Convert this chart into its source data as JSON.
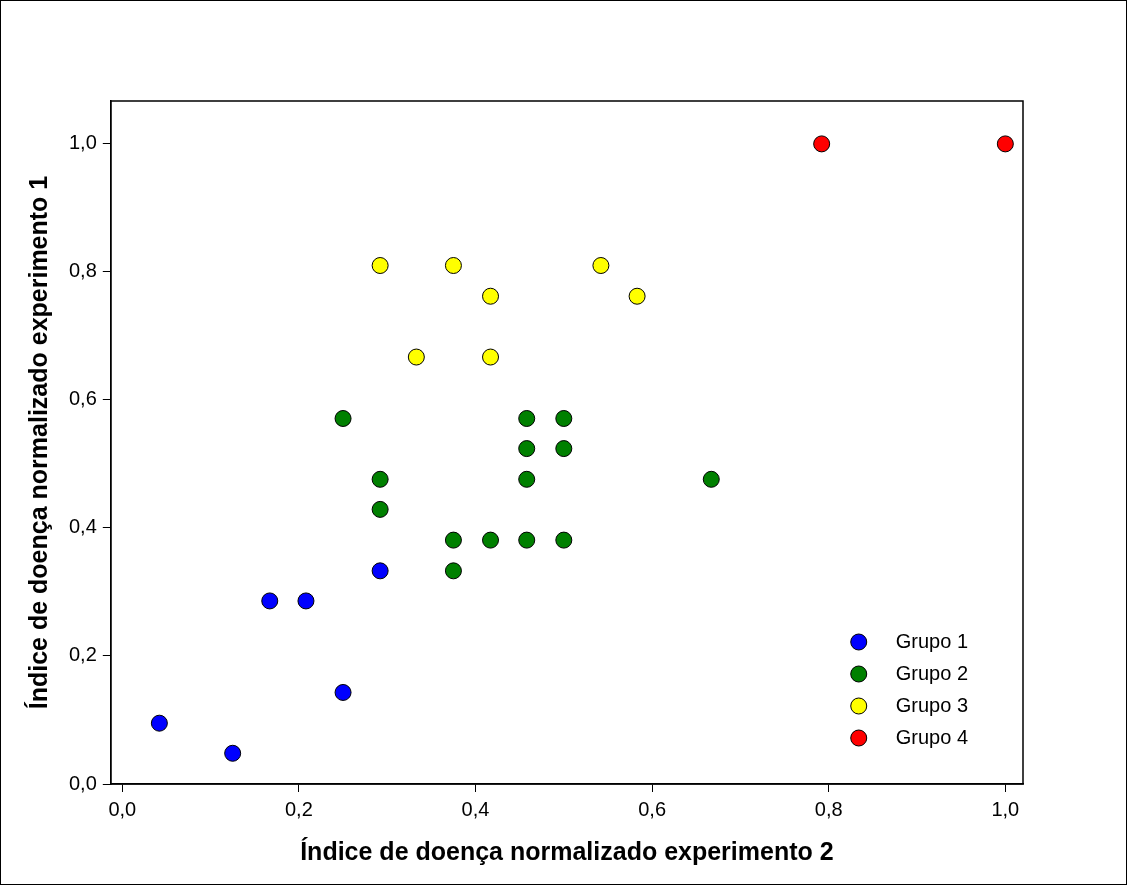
{
  "chart_data": {
    "type": "scatter",
    "xlabel": "Índice de doença normalizado experimento 2",
    "ylabel": "Índice de doença normalizado experimento 1",
    "series": [
      {
        "name": "Grupo 1",
        "color": "#0000ff",
        "x": [
          0.042,
          0.125,
          0.167,
          0.208,
          0.25,
          0.292
        ],
        "values": [
          0.095,
          0.048,
          0.286,
          0.286,
          0.143,
          0.333
        ]
      },
      {
        "name": "Grupo 2",
        "color": "#008000",
        "x": [
          0.25,
          0.292,
          0.292,
          0.375,
          0.375,
          0.417,
          0.458,
          0.458,
          0.458,
          0.458,
          0.5,
          0.5,
          0.5,
          0.667
        ],
        "values": [
          0.571,
          0.476,
          0.429,
          0.381,
          0.333,
          0.381,
          0.571,
          0.524,
          0.476,
          0.381,
          0.571,
          0.524,
          0.381,
          0.476
        ]
      },
      {
        "name": "Grupo 3",
        "color": "#ffff00",
        "x": [
          0.292,
          0.375,
          0.417,
          0.333,
          0.417,
          0.542,
          0.583
        ],
        "values": [
          0.81,
          0.81,
          0.762,
          0.667,
          0.667,
          0.81,
          0.762
        ]
      },
      {
        "name": "Grupo 4",
        "color": "#ff0000",
        "x": [
          0.792,
          1.0
        ],
        "values": [
          1.0,
          1.0
        ]
      }
    ],
    "xlim": [
      -0.013,
      1.02
    ],
    "ylim": [
      0,
      1.067
    ],
    "xticks": [
      {
        "value": 0,
        "label": "0,0"
      },
      {
        "value": 0.2,
        "label": "0,2"
      },
      {
        "value": 0.4,
        "label": "0,4"
      },
      {
        "value": 0.6,
        "label": "0,6"
      },
      {
        "value": 0.8,
        "label": "0,8"
      },
      {
        "value": 1,
        "label": "1,0"
      }
    ],
    "yticks": [
      {
        "value": 0,
        "label": "0,0"
      },
      {
        "value": 0.2,
        "label": "0,2"
      },
      {
        "value": 0.4,
        "label": "0,4"
      },
      {
        "value": 0.6,
        "label": "0,6"
      },
      {
        "value": 0.8,
        "label": "0,8"
      },
      {
        "value": 1,
        "label": "1,0"
      }
    ],
    "grid": false,
    "legend": "bottom right",
    "marker": "circle"
  }
}
